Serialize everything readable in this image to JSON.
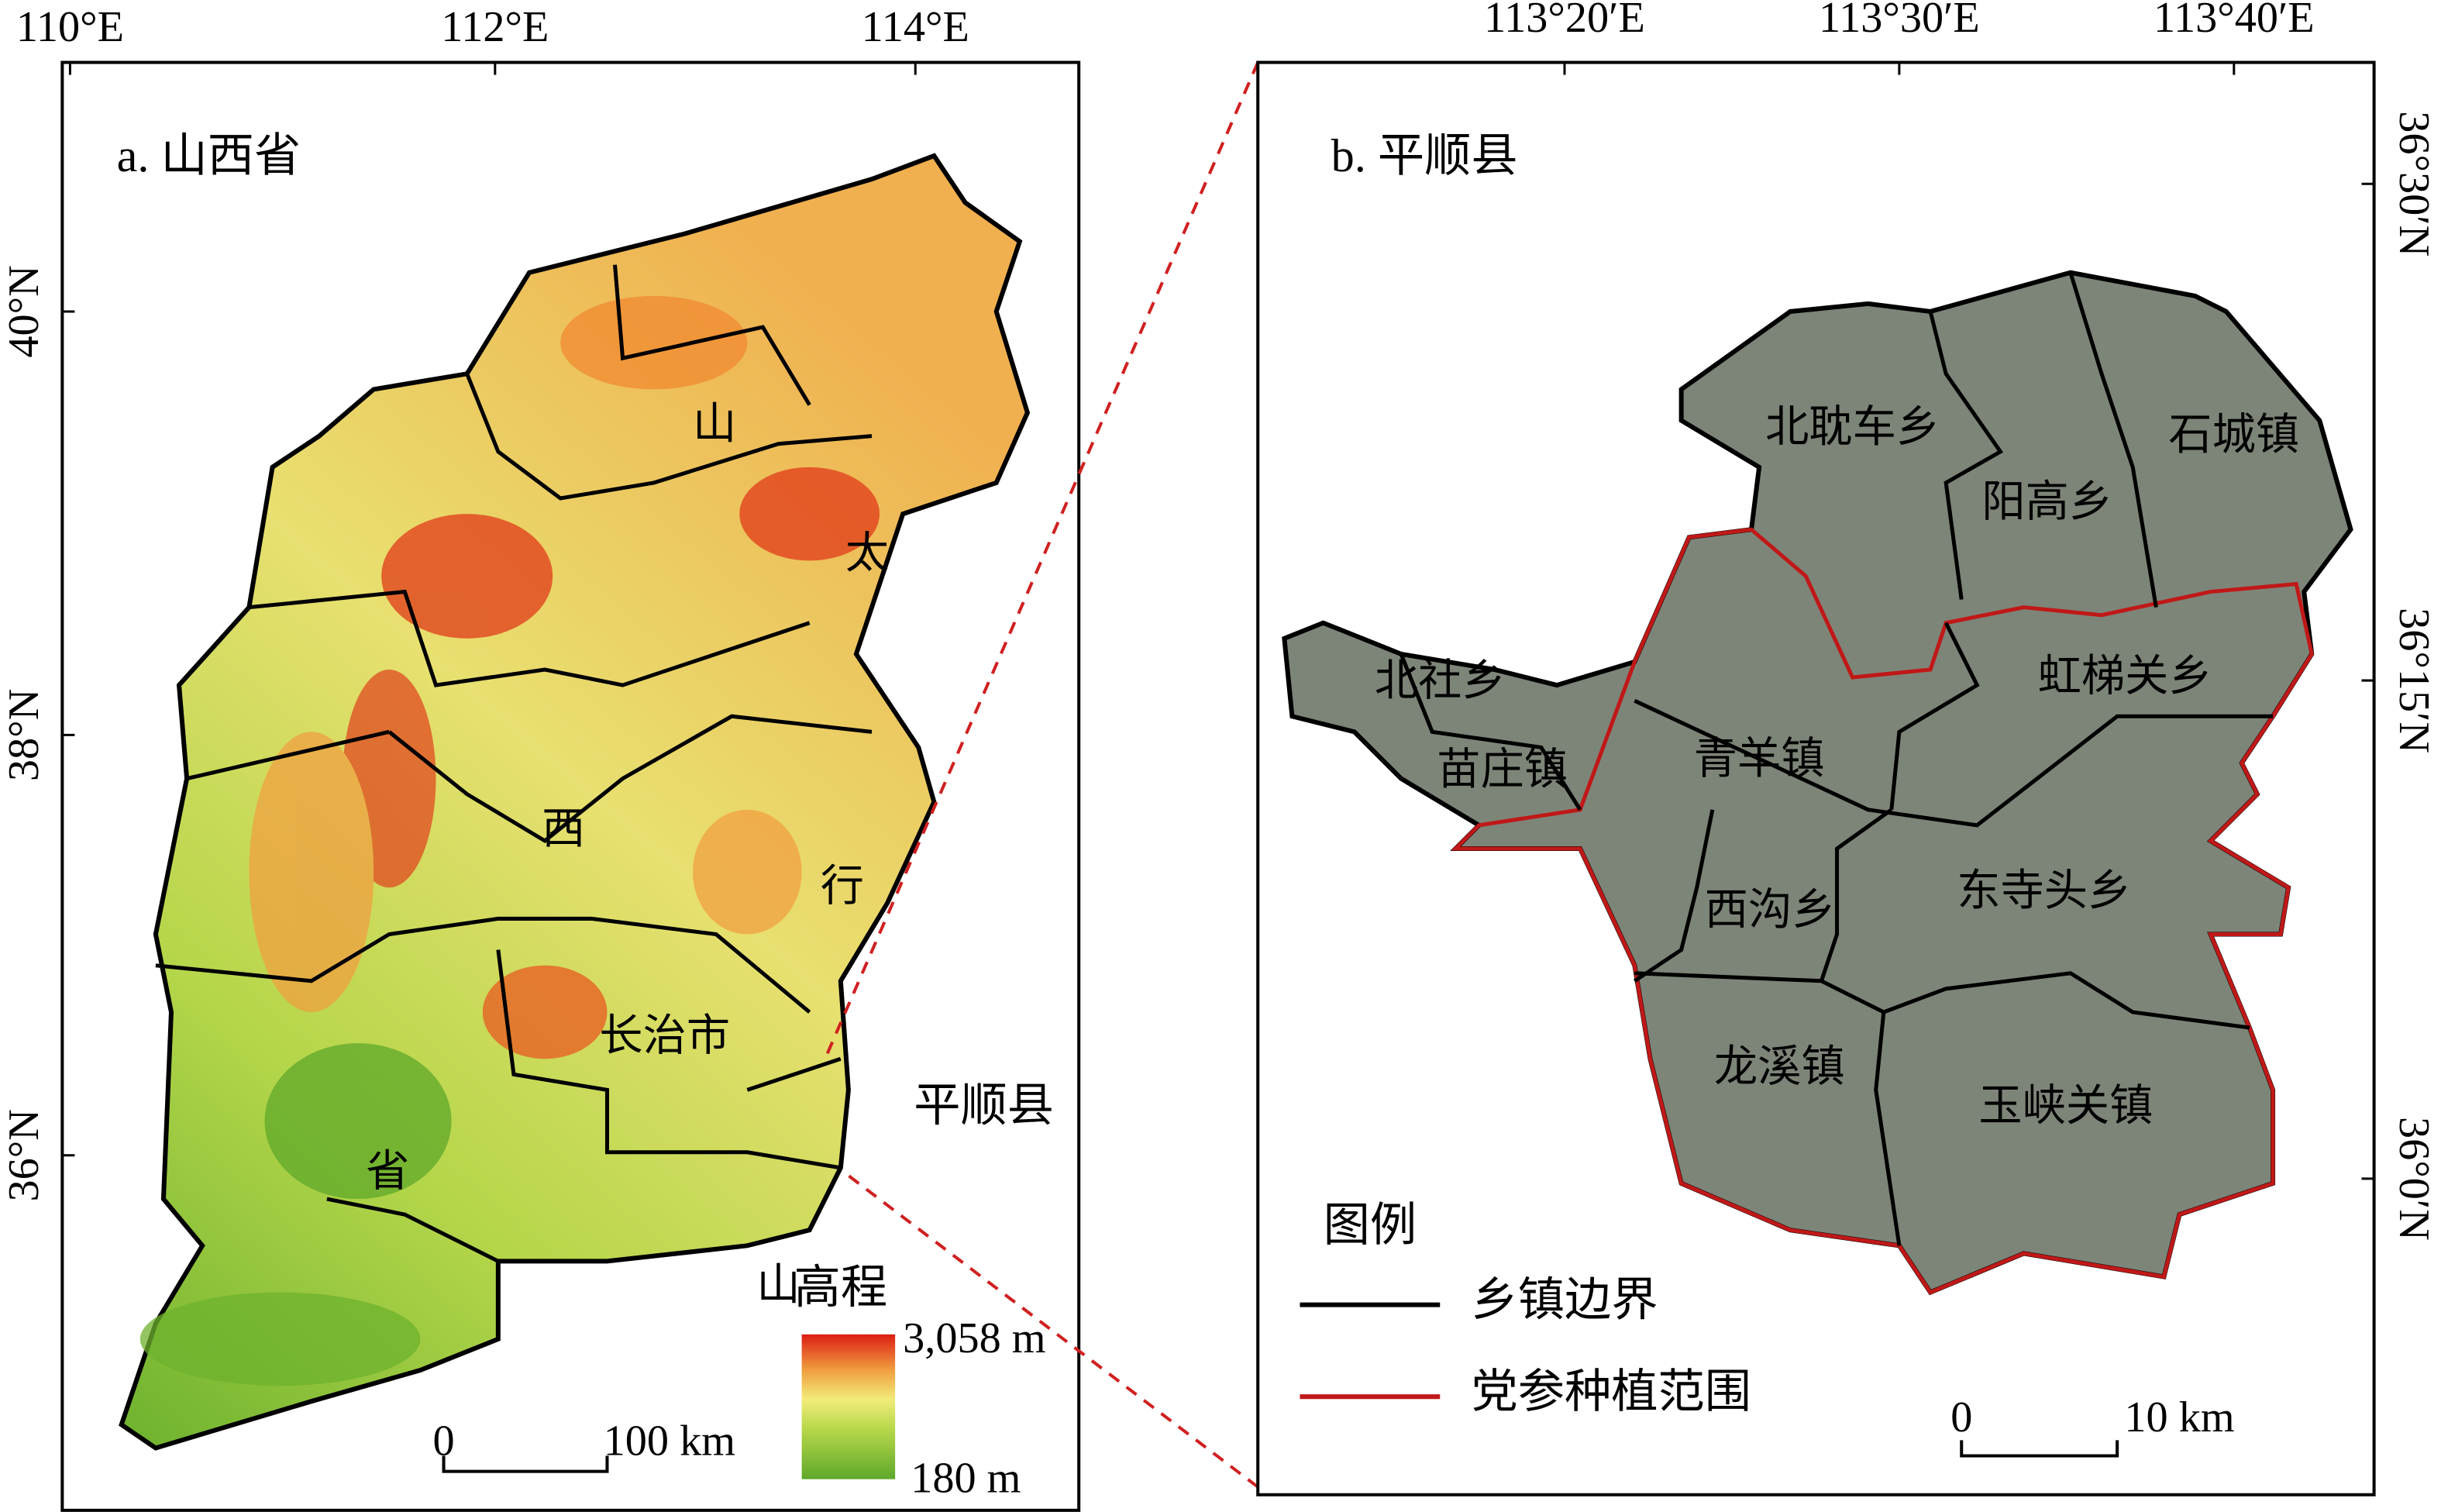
{
  "panel_a": {
    "title": "a. 山西省",
    "lon_labels": [
      "110°E",
      "112°E",
      "114°E"
    ],
    "lat_labels": [
      "40°N",
      "38°N",
      "36°N"
    ],
    "labels": [
      "山",
      "太",
      "西",
      "行",
      "长治市",
      "省",
      "山",
      "平顺县"
    ],
    "legend": {
      "title": "高程",
      "max": "3,058 m",
      "min": "180 m"
    },
    "scale": [
      "0",
      "100 km"
    ]
  },
  "panel_b": {
    "title": "b. 平顺县",
    "lon_labels": [
      "113°20′E",
      "113°30′E",
      "113°40′E"
    ],
    "lat_labels": [
      "36°30′N",
      "36°15′N",
      "36°0′N"
    ],
    "towns": [
      "北耽车乡",
      "阳高乡",
      "石城镇",
      "北社乡",
      "苗庄镇",
      "青羊镇",
      "虹梯关乡",
      "西沟乡",
      "东寺头乡",
      "龙溪镇",
      "玉峡关镇"
    ],
    "legend": {
      "title": "图例",
      "items": [
        "乡镇边界",
        "党参种植范围"
      ]
    },
    "scale": [
      "0",
      "10 km"
    ]
  }
}
